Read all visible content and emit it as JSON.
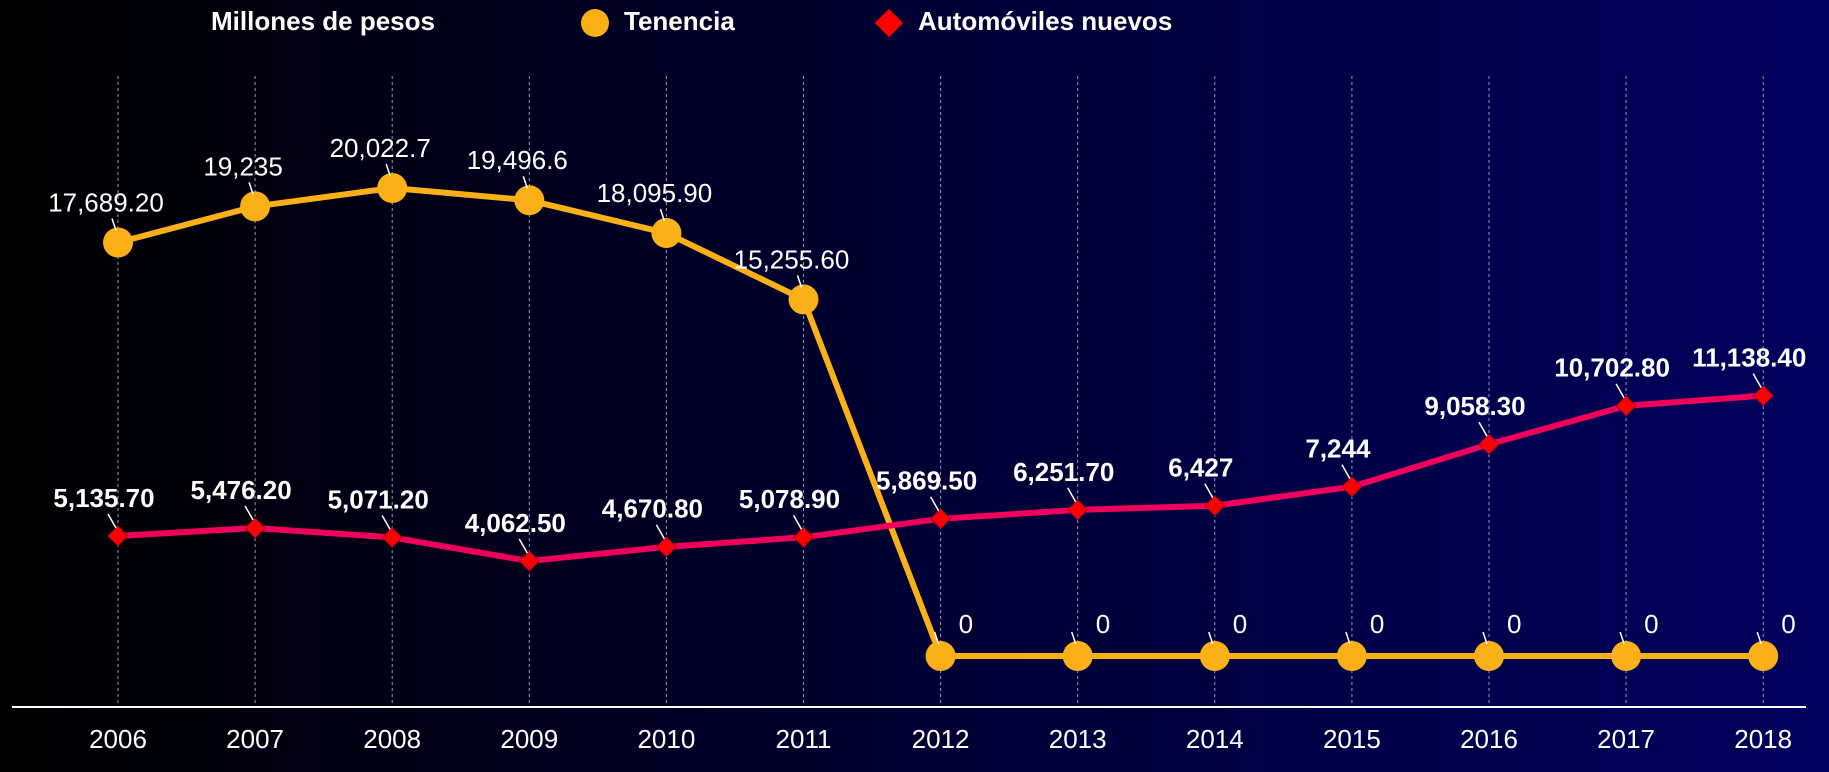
{
  "chart_data": {
    "type": "line",
    "y_label": "Millones de pesos",
    "categories": [
      "2006",
      "2007",
      "2008",
      "2009",
      "2010",
      "2011",
      "2012",
      "2013",
      "2014",
      "2015",
      "2016",
      "2017",
      "2018"
    ],
    "grid": true,
    "series": [
      {
        "name": "Tenencia",
        "color": "#fbb017",
        "marker": "circle",
        "values": [
          17689.2,
          19235,
          20022.7,
          19496.6,
          18095.9,
          15255.6,
          0,
          0,
          0,
          0,
          0,
          0,
          0
        ],
        "value_labels": [
          "17,689.20",
          "19,235",
          "20,022.7",
          "19,496.6",
          "18,095.90",
          "15,255.60",
          "0",
          "0",
          "0",
          "0",
          "0",
          "0",
          "0"
        ]
      },
      {
        "name": "Automóviles nuevos",
        "color": "#f0005a",
        "marker": "diamond",
        "marker_color": "#ff0000",
        "values": [
          5135.7,
          5476.2,
          5071.2,
          4062.5,
          4670.8,
          5078.9,
          5869.5,
          6251.7,
          6427,
          7244,
          9058.3,
          10702.8,
          11138.4
        ],
        "value_labels": [
          "5,135.70",
          "5,476.20",
          "5,071.20",
          "4,062.50",
          "4,670.80",
          "5,078.90",
          "5,869.50",
          "6,251.70",
          "6,427",
          "7,244",
          "9,058.30",
          "10,702.80",
          "11,138.40"
        ]
      }
    ]
  }
}
